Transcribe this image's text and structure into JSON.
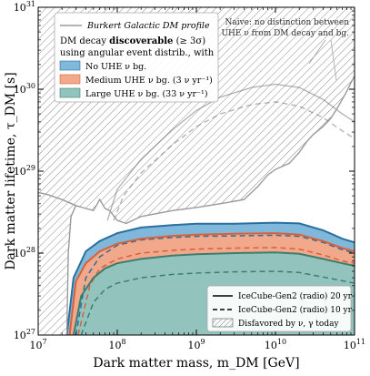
{
  "chart_data": {
    "type": "area",
    "xlabel": "Dark matter mass, m_DM [GeV]",
    "ylabel": "Dark matter lifetime, τ_DM [s]",
    "xscale": "log",
    "yscale": "log",
    "xlim": [
      10000000.0,
      100000000000.0
    ],
    "ylim": [
      1e+27,
      1e+31
    ],
    "x_tick_labels": [
      "10^7",
      "10^8",
      "10^9",
      "10^10",
      "10^11"
    ],
    "y_tick_labels": [
      "10^27",
      "10^28",
      "10^29",
      "10^30",
      "10^31"
    ],
    "grid": false,
    "legend_upper": {
      "placement": "top-left",
      "line_label": "Burkert Galactic DM profile",
      "heading_1": "DM decay ",
      "heading_bold": "discoverable",
      "heading_2": " (≥ 3σ)",
      "heading_line2": "using angular event distrib., with",
      "entries": [
        {
          "label": "No UHE ν bg.",
          "color": "#7fb8da"
        },
        {
          "label": "Medium UHE ν bg. (3 ν yr⁻¹)",
          "color": "#f2a98b"
        },
        {
          "label": "Large UHE ν bg. (33 ν yr⁻¹)",
          "color": "#92c4bd"
        }
      ]
    },
    "legend_lower": {
      "placement": "bottom-right",
      "entries": [
        {
          "label": "IceCube-Gen2 (radio) 20 yr",
          "style": "solid"
        },
        {
          "label": "IceCube-Gen2 (radio) 10 yr",
          "style": "dashed"
        },
        {
          "label": "Disfavored by ν, γ today",
          "style": "hatch"
        }
      ]
    },
    "annotation": {
      "line1": "Naive: no distinction between",
      "line2": "UHE ν from DM decay and bg."
    },
    "series": [
      {
        "name": "No UHE ν bg.",
        "color": "#7fb8da",
        "edge_color": "#2a6f9e",
        "upper_20yr": [
          [
            23000000.0,
            1e+27
          ],
          [
            28000000.0,
            5e+27
          ],
          [
            40000000.0,
            1.05e+28
          ],
          [
            60000000.0,
            1.4e+28
          ],
          [
            100000000.0,
            1.75e+28
          ],
          [
            200000000.0,
            2.05e+28
          ],
          [
            500000000.0,
            2.2e+28
          ],
          [
            1000000000.0,
            2.28e+28
          ],
          [
            3000000000.0,
            2.28e+28
          ],
          [
            10000000000.0,
            2.35e+28
          ],
          [
            20000000000.0,
            2.3e+28
          ],
          [
            40000000000.0,
            1.9e+28
          ],
          [
            70000000000.0,
            1.5e+28
          ],
          [
            100000000000.0,
            1.35e+28
          ]
        ],
        "upper_10yr": [
          [
            30000000.0,
            1e+27
          ],
          [
            40000000.0,
            5e+27
          ],
          [
            60000000.0,
            9e+27
          ],
          [
            100000000.0,
            1.25e+28
          ],
          [
            200000000.0,
            1.45e+28
          ],
          [
            500000000.0,
            1.55e+28
          ],
          [
            1000000000.0,
            1.6e+28
          ],
          [
            3000000000.0,
            1.62e+28
          ],
          [
            10000000000.0,
            1.65e+28
          ],
          [
            20000000000.0,
            1.6e+28
          ],
          [
            40000000000.0,
            1.35e+28
          ],
          [
            70000000000.0,
            1.1e+28
          ],
          [
            100000000000.0,
            1e+28
          ]
        ]
      },
      {
        "name": "Medium UHE ν bg.",
        "color": "#f2a98b",
        "edge_color": "#d9603b",
        "upper_20yr": [
          [
            25000000.0,
            1e+27
          ],
          [
            30000000.0,
            4.5e+27
          ],
          [
            40000000.0,
            7.5e+27
          ],
          [
            60000000.0,
            1.05e+28
          ],
          [
            100000000.0,
            1.3e+28
          ],
          [
            200000000.0,
            1.5e+28
          ],
          [
            500000000.0,
            1.62e+28
          ],
          [
            1000000000.0,
            1.68e+28
          ],
          [
            3000000000.0,
            1.72e+28
          ],
          [
            10000000000.0,
            1.75e+28
          ],
          [
            20000000000.0,
            1.68e+28
          ],
          [
            40000000000.0,
            1.4e+28
          ],
          [
            70000000000.0,
            1.15e+28
          ],
          [
            100000000000.0,
            1.05e+28
          ]
        ],
        "upper_10yr": [
          [
            32000000.0,
            1e+27
          ],
          [
            45000000.0,
            4e+27
          ],
          [
            60000000.0,
            6.5e+27
          ],
          [
            100000000.0,
            8.5e+27
          ],
          [
            200000000.0,
            1e+28
          ],
          [
            500000000.0,
            1.08e+28
          ],
          [
            1000000000.0,
            1.12e+28
          ],
          [
            3000000000.0,
            1.15e+28
          ],
          [
            10000000000.0,
            1.17e+28
          ],
          [
            20000000000.0,
            1.12e+28
          ],
          [
            40000000000.0,
            9.5e+27
          ],
          [
            70000000000.0,
            8e+27
          ],
          [
            100000000000.0,
            7.5e+27
          ]
        ]
      },
      {
        "name": "Large UHE ν bg.",
        "color": "#92c4bd",
        "edge_color": "#3d7d6e",
        "upper_20yr": [
          [
            28000000.0,
            1e+27
          ],
          [
            35000000.0,
            3e+27
          ],
          [
            50000000.0,
            5e+27
          ],
          [
            70000000.0,
            6.5e+27
          ],
          [
            100000000.0,
            7.5e+27
          ],
          [
            200000000.0,
            8.5e+27
          ],
          [
            500000000.0,
            9.3e+27
          ],
          [
            1000000000.0,
            9.7e+27
          ],
          [
            3000000000.0,
            1e+28
          ],
          [
            10000000000.0,
            1.02e+28
          ],
          [
            20000000000.0,
            9.8e+27
          ],
          [
            40000000000.0,
            8.5e+27
          ],
          [
            70000000000.0,
            7.5e+27
          ],
          [
            100000000000.0,
            7e+27
          ]
        ],
        "upper_10yr": [
          [
            35000000.0,
            1e+27
          ],
          [
            50000000.0,
            2.5e+27
          ],
          [
            70000000.0,
            3.6e+27
          ],
          [
            100000000.0,
            4.3e+27
          ],
          [
            200000000.0,
            5e+27
          ],
          [
            500000000.0,
            5.5e+27
          ],
          [
            1000000000.0,
            5.7e+27
          ],
          [
            3000000000.0,
            5.9e+27
          ],
          [
            10000000000.0,
            6e+27
          ],
          [
            20000000000.0,
            5.8e+27
          ],
          [
            40000000000.0,
            5.1e+27
          ],
          [
            70000000000.0,
            4.6e+27
          ],
          [
            100000000000.0,
            4.3e+27
          ]
        ]
      }
    ],
    "naive_20yr": [
      [
        75000000.0,
        2.5e+28
      ],
      [
        100000000.0,
        6e+28
      ],
      [
        200000000.0,
        1.4e+29
      ],
      [
        500000000.0,
        3.2e+29
      ],
      [
        1000000000.0,
        5.5e+29
      ],
      [
        2000000000.0,
        8e+29
      ],
      [
        5000000000.0,
        1.05e+30
      ],
      [
        10000000000.0,
        1.15e+30
      ],
      [
        20000000000.0,
        1.05e+30
      ],
      [
        40000000000.0,
        7.5e+29
      ],
      [
        70000000000.0,
        5e+29
      ],
      [
        100000000000.0,
        4e+29
      ]
    ],
    "naive_10yr": [
      [
        90000000.0,
        2.5e+28
      ],
      [
        120000000.0,
        5e+28
      ],
      [
        200000000.0,
        9.5e+28
      ],
      [
        500000000.0,
        2.1e+29
      ],
      [
        1000000000.0,
        3.5e+29
      ],
      [
        2000000000.0,
        5e+29
      ],
      [
        5000000000.0,
        6.5e+29
      ],
      [
        10000000000.0,
        7e+29
      ],
      [
        20000000000.0,
        6.2e+29
      ],
      [
        40000000000.0,
        4.5e+29
      ],
      [
        70000000000.0,
        3.1e+29
      ],
      [
        100000000000.0,
        2.5e+29
      ]
    ],
    "disfavored_boundary": [
      [
        10000000.0,
        5.5e+28
      ],
      [
        13000000.0,
        5.2e+28
      ],
      [
        20000000.0,
        4.5e+28
      ],
      [
        30000000.0,
        3.8e+28
      ],
      [
        40000000.0,
        3.5e+28
      ],
      [
        50000000.0,
        3.3e+28
      ],
      [
        60000000.0,
        4.5e+28
      ],
      [
        70000000.0,
        3.5e+28
      ],
      [
        80000000.0,
        3.3e+28
      ],
      [
        100000000.0,
        2.5e+28
      ],
      [
        130000000.0,
        2.3e+28
      ],
      [
        200000000.0,
        2.8e+28
      ],
      [
        500000000.0,
        3.3e+28
      ],
      [
        1000000000.0,
        3.6e+28
      ],
      [
        2000000000.0,
        4e+28
      ],
      [
        4000000000.0,
        4.5e+28
      ],
      [
        6000000000.0,
        6.5e+28
      ],
      [
        8000000000.0,
        9e+28
      ],
      [
        10000000000.0,
        1.05e+29
      ],
      [
        15000000000.0,
        1.25e+29
      ],
      [
        20000000000.0,
        1.7e+29
      ],
      [
        25000000000.0,
        2.3e+29
      ],
      [
        30000000000.0,
        2.8e+29
      ],
      [
        40000000000.0,
        3.5e+29
      ],
      [
        50000000000.0,
        4.4e+29
      ],
      [
        60000000000.0,
        5.8e+29
      ],
      [
        70000000000.0,
        7.5e+29
      ],
      [
        80000000000.0,
        9.5e+29
      ],
      [
        90000000000.0,
        1.2e+30
      ],
      [
        100000000000.0,
        1.45e+30
      ]
    ],
    "disfavored_left_edge": [
      [
        23000000.0,
        1e+27
      ],
      [
        24000000.0,
        1e+28
      ],
      [
        26000000.0,
        2.8e+28
      ],
      [
        30000000.0,
        3.8e+28
      ]
    ]
  }
}
